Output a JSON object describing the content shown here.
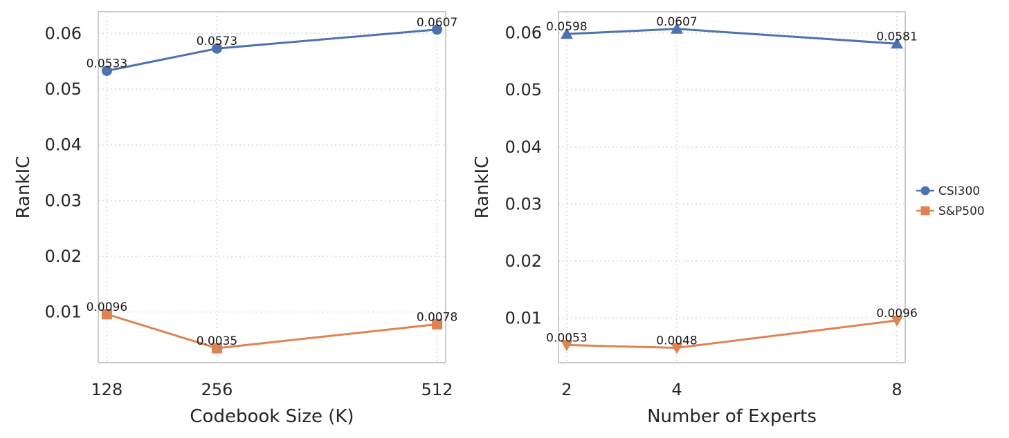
{
  "chart_data": [
    {
      "type": "line",
      "xlabel": "Codebook Size (K)",
      "ylabel": "RankIC",
      "x": [
        "128",
        "256",
        "512"
      ],
      "xlim": [
        118,
        522
      ],
      "ylim": [
        0.0009,
        0.0639
      ],
      "yticks": [
        "0.01",
        "0.02",
        "0.03",
        "0.04",
        "0.05",
        "0.06"
      ],
      "grid": true,
      "series": [
        {
          "name": "CSI300",
          "marker": "circle",
          "color": "#4c72b0",
          "values": [
            0.0533,
            0.0573,
            0.0607
          ],
          "labels": [
            "0.0533",
            "0.0573",
            "0.0607"
          ]
        },
        {
          "name": "S&P500",
          "marker": "square",
          "color": "#dd8452",
          "values": [
            0.0096,
            0.0035,
            0.0078
          ],
          "labels": [
            "0.0096",
            "0.0035",
            "0.0078"
          ]
        }
      ]
    },
    {
      "type": "line",
      "xlabel": "Number of Experts",
      "ylabel": "RankIC",
      "x": [
        "2",
        "4",
        "8"
      ],
      "xlim": [
        1.85,
        8.15
      ],
      "ylim": [
        0.0022,
        0.0637
      ],
      "yticks": [
        "0.01",
        "0.02",
        "0.03",
        "0.04",
        "0.05",
        "0.06"
      ],
      "grid": true,
      "legend_position": "outside-right",
      "series": [
        {
          "name": "CSI300",
          "marker": "triangle-up",
          "color": "#4c72b0",
          "values": [
            0.0598,
            0.0607,
            0.0581
          ],
          "labels": [
            "0.0598",
            "0.0607",
            "0.0581"
          ]
        },
        {
          "name": "S&P500",
          "marker": "triangle-down",
          "color": "#dd8452",
          "values": [
            0.0053,
            0.0048,
            0.0096
          ],
          "labels": [
            "0.0053",
            "0.0048",
            "0.0096"
          ]
        }
      ]
    }
  ],
  "legend": [
    {
      "label": "CSI300",
      "marker": "circle",
      "color": "#4c72b0"
    },
    {
      "label": "S&P500",
      "marker": "square",
      "color": "#dd8452"
    }
  ]
}
